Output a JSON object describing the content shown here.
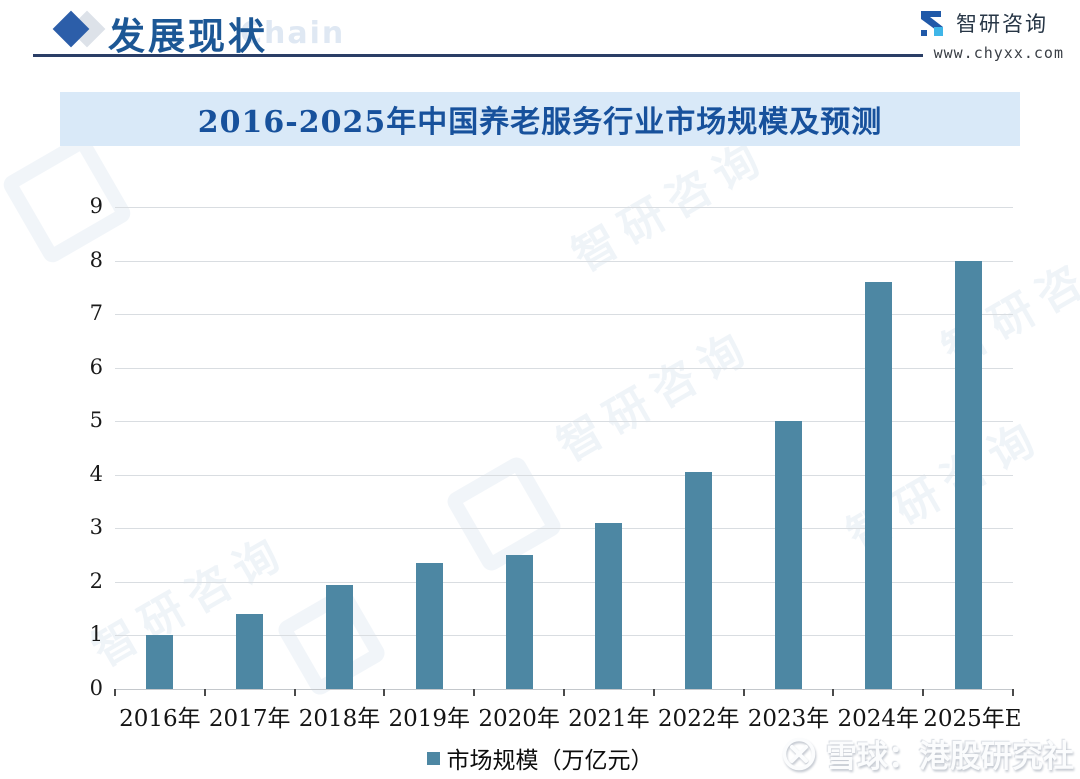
{
  "header": {
    "title": "发展现状",
    "watermark_chain": "Chain",
    "brand": {
      "name": "智研咨询",
      "url": "www.chyxx.com"
    }
  },
  "chart": {
    "title": "2016-2025年中国养老服务行业市场规模及预测",
    "legend_label": "市场规模（万亿元）"
  },
  "chart_data": {
    "type": "bar",
    "title": "2016-2025年中国养老服务行业市场规模及预测",
    "categories": [
      "2016年",
      "2017年",
      "2018年",
      "2019年",
      "2020年",
      "2021年",
      "2022年",
      "2023年",
      "2024年",
      "2025年E"
    ],
    "values": [
      1.0,
      1.4,
      1.95,
      2.35,
      2.5,
      3.1,
      4.05,
      5.0,
      7.6,
      8.0
    ],
    "ylabel": "",
    "xlabel": "",
    "ylim": [
      0,
      9
    ],
    "yticks": [
      0,
      1,
      2,
      3,
      4,
      5,
      6,
      7,
      8,
      9
    ],
    "grid": true,
    "legend": [
      "市场规模（万亿元）"
    ],
    "legend_position": "bottom",
    "bar_color": "#4d87a3"
  },
  "watermarks": {
    "bottom_right": "雪球：港股研究社",
    "pattern_text": "智研咨询"
  },
  "colors": {
    "bar": "#4d87a3",
    "banner_bg": "#d9e9f8",
    "banner_text": "#17519c",
    "header_text": "#1c5795",
    "diamond": "#2c5ea9",
    "header_rule": "#2a3e66",
    "gridline": "#d9dde1",
    "axis_text": "#1a1a1a"
  }
}
